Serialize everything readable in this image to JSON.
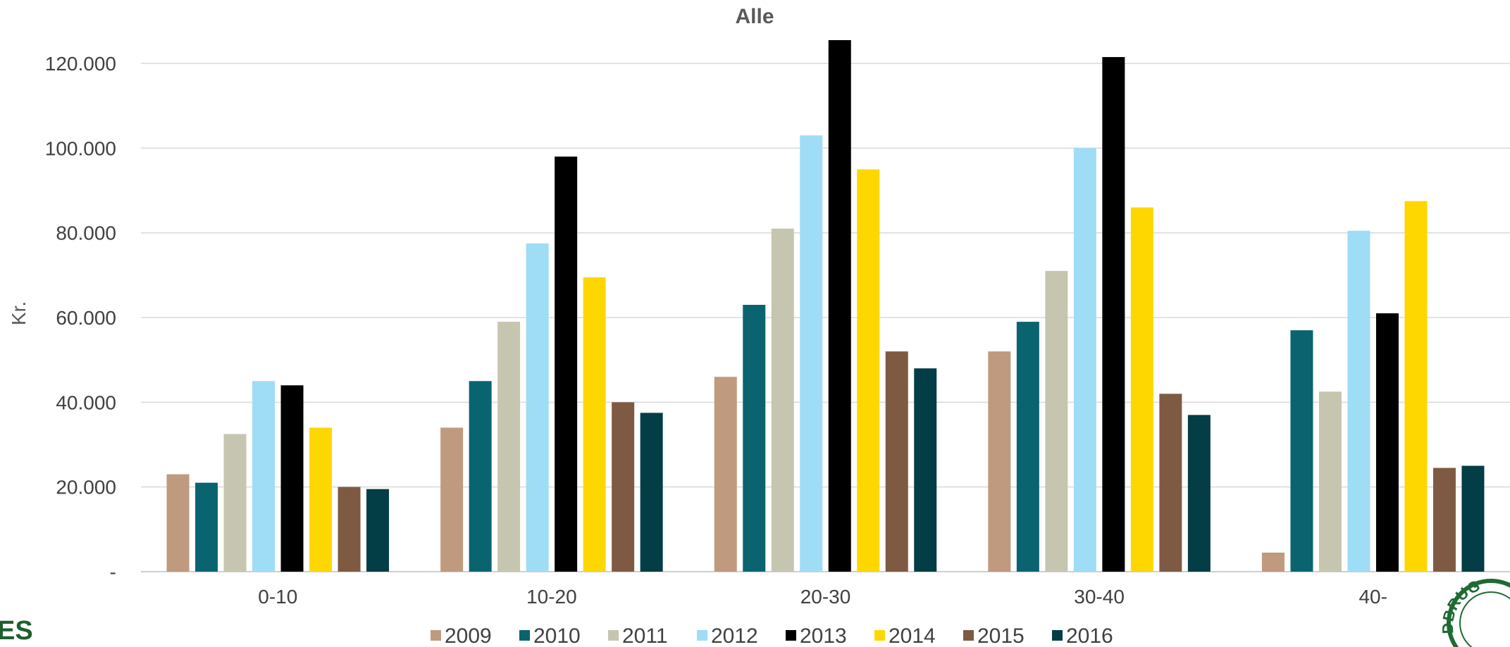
{
  "chart_data": {
    "type": "bar",
    "subtitle": "Alle",
    "ylabel": "Kr.",
    "xlabel": "",
    "categories": [
      "0-10",
      "10-20",
      "20-30",
      "30-40",
      "40-"
    ],
    "ylim": [
      0,
      125000
    ],
    "yticks": [
      {
        "value": 0,
        "label": "-"
      },
      {
        "value": 20000,
        "label": "20.000"
      },
      {
        "value": 40000,
        "label": "40.000"
      },
      {
        "value": 60000,
        "label": "60.000"
      },
      {
        "value": 80000,
        "label": "80.000"
      },
      {
        "value": 100000,
        "label": "100.000"
      },
      {
        "value": 120000,
        "label": "120.000"
      }
    ],
    "grid": true,
    "legend_position": "bottom",
    "series": [
      {
        "name": "2009",
        "color": "#bf9a7f",
        "values": [
          23000,
          34000,
          46000,
          52000,
          4500
        ]
      },
      {
        "name": "2010",
        "color": "#0a6470",
        "values": [
          21000,
          45000,
          63000,
          59000,
          57000
        ]
      },
      {
        "name": "2011",
        "color": "#c6c6b0",
        "values": [
          32500,
          59000,
          81000,
          71000,
          42500
        ]
      },
      {
        "name": "2012",
        "color": "#9fdcf6",
        "values": [
          45000,
          77500,
          103000,
          100000,
          80500
        ]
      },
      {
        "name": "2013",
        "color": "#000000",
        "values": [
          44000,
          98000,
          125500,
          121500,
          61000
        ]
      },
      {
        "name": "2014",
        "color": "#ffd700",
        "values": [
          34000,
          69500,
          95000,
          86000,
          87500
        ]
      },
      {
        "name": "2015",
        "color": "#7f5a43",
        "values": [
          20000,
          40000,
          52000,
          42000,
          24500
        ]
      },
      {
        "name": "2016",
        "color": "#033d45",
        "values": [
          19500,
          37500,
          48000,
          37000,
          25000
        ]
      }
    ]
  },
  "branding": {
    "logo_text": "ES",
    "seal_text": "DBRUG"
  }
}
